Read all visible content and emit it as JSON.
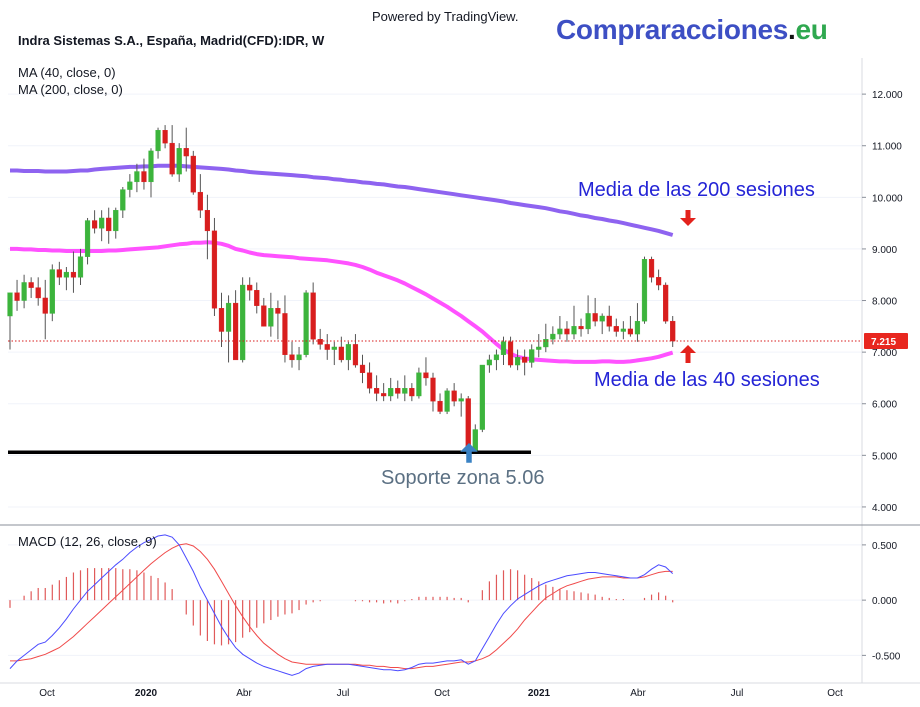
{
  "header": {
    "powered_by": "Powered by TradingView.",
    "brand_part1": "Compraracciones",
    "brand_part2": ".",
    "brand_part3": "eu",
    "symbol_title": "Indra Sistemas S.A., España, Madrid(CFD):IDR, W"
  },
  "indicators": {
    "ma40_label": "MA (40, close, 0)",
    "ma200_label": "MA (200, close, 0)",
    "macd_label": "MACD (12, 26, close, 9)"
  },
  "annotations": {
    "ma200_text": "Media de las 200 sesiones",
    "ma40_text": "Media de las 40 sesiones",
    "support_text": "Soporte zona 5.06"
  },
  "colors": {
    "up": "#3cb43c",
    "down": "#d81e1e",
    "ma200": "#8e63f0",
    "ma40": "#ff52ff",
    "support": "#000000",
    "price_badge": "#e8271f",
    "macd_line": "#4b4bff",
    "signal_line": "#f04a4a",
    "histogram": "#e05a5a",
    "arrow_red": "#e3221c",
    "arrow_blue": "#3a82c4"
  },
  "chart_data": [
    {
      "type": "candlestick",
      "title": "Indra Sistemas S.A., España, Madrid(CFD):IDR, W",
      "y_ticks": [
        "12.000",
        "11.000",
        "10.000",
        "9.000",
        "8.000",
        "7.000",
        "6.000",
        "5.000",
        "4.000"
      ],
      "ylim": [
        3.65,
        12.7
      ],
      "x_ticks": [
        "Oct",
        "2020",
        "Abr",
        "Jul",
        "Oct",
        "2021",
        "Abr",
        "Jul",
        "Oct"
      ],
      "last_price": 7.215,
      "last_price_label": "7.215",
      "support_level": 5.06,
      "candles": [
        [
          7.7,
          8.15,
          7.05,
          8.15
        ],
        [
          8.15,
          8.4,
          7.8,
          8.0
        ],
        [
          8.0,
          8.5,
          7.85,
          8.35
        ],
        [
          8.35,
          8.45,
          8.05,
          8.25
        ],
        [
          8.25,
          8.45,
          7.9,
          8.05
        ],
        [
          8.05,
          8.4,
          7.25,
          7.75
        ],
        [
          7.75,
          8.7,
          7.6,
          8.6
        ],
        [
          8.6,
          8.75,
          8.3,
          8.45
        ],
        [
          8.45,
          8.65,
          8.2,
          8.55
        ],
        [
          8.55,
          8.95,
          8.15,
          8.45
        ],
        [
          8.45,
          9.0,
          8.3,
          8.85
        ],
        [
          8.85,
          9.6,
          8.7,
          9.55
        ],
        [
          9.55,
          9.75,
          9.3,
          9.4
        ],
        [
          9.4,
          9.75,
          9.15,
          9.6
        ],
        [
          9.6,
          9.8,
          9.1,
          9.35
        ],
        [
          9.35,
          9.8,
          9.2,
          9.75
        ],
        [
          9.75,
          10.2,
          9.6,
          10.15
        ],
        [
          10.15,
          10.45,
          10.0,
          10.3
        ],
        [
          10.3,
          10.65,
          10.1,
          10.5
        ],
        [
          10.5,
          10.75,
          10.15,
          10.3
        ],
        [
          10.3,
          10.95,
          10.0,
          10.9
        ],
        [
          10.9,
          11.35,
          10.75,
          11.3
        ],
        [
          11.3,
          11.4,
          10.95,
          11.05
        ],
        [
          11.05,
          11.4,
          10.4,
          10.45
        ],
        [
          10.45,
          11.05,
          10.3,
          10.95
        ],
        [
          10.95,
          11.35,
          10.5,
          10.8
        ],
        [
          10.8,
          10.9,
          10.05,
          10.1
        ],
        [
          10.1,
          10.45,
          9.6,
          9.75
        ],
        [
          9.75,
          10.05,
          8.8,
          9.35
        ],
        [
          9.35,
          9.6,
          7.7,
          7.85
        ],
        [
          7.85,
          8.15,
          7.1,
          7.4
        ],
        [
          7.4,
          8.1,
          6.8,
          7.95
        ],
        [
          7.95,
          8.2,
          6.9,
          6.85
        ],
        [
          6.85,
          8.45,
          6.8,
          8.3
        ],
        [
          8.3,
          8.45,
          8.0,
          8.2
        ],
        [
          8.2,
          8.35,
          7.75,
          7.9
        ],
        [
          7.9,
          8.05,
          7.5,
          7.5
        ],
        [
          7.5,
          8.15,
          7.3,
          7.85
        ],
        [
          7.85,
          8.0,
          7.25,
          7.75
        ],
        [
          7.75,
          8.1,
          6.8,
          6.95
        ],
        [
          6.95,
          7.2,
          6.7,
          6.85
        ],
        [
          6.85,
          7.1,
          6.65,
          6.95
        ],
        [
          6.95,
          8.2,
          6.9,
          8.15
        ],
        [
          8.15,
          8.35,
          7.15,
          7.25
        ],
        [
          7.25,
          7.45,
          7.05,
          7.15
        ],
        [
          7.15,
          7.35,
          6.85,
          7.05
        ],
        [
          7.05,
          7.2,
          6.75,
          7.1
        ],
        [
          7.1,
          7.3,
          6.8,
          6.85
        ],
        [
          6.85,
          7.2,
          6.65,
          7.15
        ],
        [
          7.15,
          7.35,
          6.7,
          6.75
        ],
        [
          6.75,
          6.95,
          6.4,
          6.6
        ],
        [
          6.6,
          6.8,
          6.2,
          6.3
        ],
        [
          6.3,
          6.55,
          6.05,
          6.2
        ],
        [
          6.2,
          6.4,
          6.05,
          6.15
        ],
        [
          6.15,
          6.5,
          6.05,
          6.3
        ],
        [
          6.3,
          6.45,
          6.1,
          6.2
        ],
        [
          6.2,
          6.55,
          6.05,
          6.3
        ],
        [
          6.3,
          6.4,
          6.05,
          6.15
        ],
        [
          6.15,
          6.7,
          6.1,
          6.6
        ],
        [
          6.6,
          6.9,
          6.35,
          6.5
        ],
        [
          6.5,
          6.6,
          5.85,
          6.05
        ],
        [
          6.05,
          6.2,
          5.8,
          5.85
        ],
        [
          5.85,
          6.3,
          5.8,
          6.25
        ],
        [
          6.25,
          6.4,
          5.95,
          6.05
        ],
        [
          6.05,
          6.2,
          5.75,
          6.1
        ],
        [
          6.1,
          6.15,
          5.05,
          5.1
        ],
        [
          5.1,
          5.6,
          5.05,
          5.5
        ],
        [
          5.5,
          6.75,
          5.45,
          6.75
        ],
        [
          6.75,
          6.95,
          6.6,
          6.85
        ],
        [
          6.85,
          7.05,
          6.65,
          6.95
        ],
        [
          6.95,
          7.3,
          6.75,
          7.2
        ],
        [
          7.2,
          7.3,
          6.7,
          6.75
        ],
        [
          6.75,
          7.05,
          6.65,
          6.9
        ],
        [
          6.9,
          7.05,
          6.55,
          6.8
        ],
        [
          6.8,
          7.15,
          6.7,
          7.05
        ],
        [
          7.05,
          7.35,
          6.9,
          7.1
        ],
        [
          7.1,
          7.55,
          7.0,
          7.25
        ],
        [
          7.25,
          7.5,
          7.15,
          7.35
        ],
        [
          7.35,
          7.7,
          7.25,
          7.45
        ],
        [
          7.45,
          7.6,
          7.2,
          7.35
        ],
        [
          7.35,
          7.9,
          7.25,
          7.5
        ],
        [
          7.5,
          7.65,
          7.3,
          7.45
        ],
        [
          7.45,
          8.1,
          7.35,
          7.75
        ],
        [
          7.75,
          8.05,
          7.5,
          7.6
        ],
        [
          7.6,
          7.75,
          7.35,
          7.7
        ],
        [
          7.7,
          7.9,
          7.4,
          7.5
        ],
        [
          7.5,
          7.65,
          7.3,
          7.4
        ],
        [
          7.4,
          7.6,
          7.25,
          7.45
        ],
        [
          7.45,
          7.7,
          7.3,
          7.35
        ],
        [
          7.35,
          7.95,
          7.2,
          7.6
        ],
        [
          7.6,
          8.85,
          7.55,
          8.8
        ],
        [
          8.8,
          8.85,
          8.35,
          8.45
        ],
        [
          8.45,
          8.6,
          8.2,
          8.3
        ],
        [
          8.3,
          8.35,
          7.55,
          7.6
        ],
        [
          7.6,
          7.7,
          7.1,
          7.215
        ]
      ],
      "ma200_values": [
        10.52,
        10.52,
        10.51,
        10.51,
        10.51,
        10.5,
        10.5,
        10.5,
        10.5,
        10.51,
        10.52,
        10.52,
        10.54,
        10.55,
        10.56,
        10.57,
        10.58,
        10.59,
        10.59,
        10.6,
        10.6,
        10.61,
        10.61,
        10.61,
        10.61,
        10.6,
        10.59,
        10.58,
        10.57,
        10.56,
        10.55,
        10.54,
        10.52,
        10.51,
        10.49,
        10.48,
        10.47,
        10.46,
        10.45,
        10.44,
        10.43,
        10.42,
        10.41,
        10.39,
        10.38,
        10.37,
        10.35,
        10.34,
        10.32,
        10.31,
        10.29,
        10.28,
        10.26,
        10.25,
        10.23,
        10.21,
        10.2,
        10.18,
        10.16,
        10.14,
        10.12,
        10.1,
        10.08,
        10.06,
        10.04,
        10.02,
        10.0,
        9.98,
        9.96,
        9.94,
        9.92,
        9.89,
        9.87,
        9.85,
        9.83,
        9.81,
        9.79,
        9.76,
        9.73,
        9.71,
        9.68,
        9.65,
        9.63,
        9.6,
        9.58,
        9.55,
        9.53,
        9.5,
        9.47,
        9.44,
        9.41,
        9.38,
        9.35,
        9.31,
        9.27
      ],
      "ma40_values": [
        9.0,
        9.0,
        8.99,
        8.99,
        8.98,
        8.98,
        8.97,
        8.97,
        8.96,
        8.96,
        8.96,
        8.96,
        8.96,
        8.96,
        8.97,
        8.97,
        8.98,
        8.99,
        9.0,
        9.01,
        9.02,
        9.03,
        9.05,
        9.07,
        9.09,
        9.1,
        9.12,
        9.12,
        9.13,
        9.12,
        9.1,
        9.06,
        9.0,
        8.97,
        8.93,
        8.9,
        8.88,
        8.87,
        8.86,
        8.85,
        8.84,
        8.82,
        8.81,
        8.8,
        8.79,
        8.78,
        8.76,
        8.74,
        8.72,
        8.69,
        8.65,
        8.6,
        8.54,
        8.49,
        8.44,
        8.39,
        8.33,
        8.26,
        8.19,
        8.12,
        8.04,
        7.96,
        7.88,
        7.79,
        7.7,
        7.6,
        7.5,
        7.4,
        7.28,
        7.16,
        7.05,
        6.97,
        6.91,
        6.88,
        6.86,
        6.85,
        6.84,
        6.83,
        6.82,
        6.82,
        6.81,
        6.81,
        6.81,
        6.81,
        6.82,
        6.82,
        6.81,
        6.81,
        6.82,
        6.84,
        6.86,
        6.88,
        6.91,
        6.95,
        6.99
      ]
    },
    {
      "type": "line",
      "title": "MACD (12, 26, close, 9)",
      "y_ticks": [
        "0.500",
        "0.000",
        "-0.500"
      ],
      "ylim": [
        -0.75,
        0.68
      ],
      "series": [
        {
          "name": "MACD",
          "values": [
            -0.62,
            -0.55,
            -0.5,
            -0.45,
            -0.4,
            -0.38,
            -0.32,
            -0.25,
            -0.17,
            -0.08,
            0.0,
            0.08,
            0.14,
            0.2,
            0.26,
            0.32,
            0.37,
            0.43,
            0.48,
            0.52,
            0.55,
            0.58,
            0.59,
            0.57,
            0.5,
            0.38,
            0.26,
            0.12,
            0.0,
            -0.12,
            -0.24,
            -0.34,
            -0.43,
            -0.49,
            -0.53,
            -0.57,
            -0.6,
            -0.62,
            -0.64,
            -0.66,
            -0.68,
            -0.66,
            -0.62,
            -0.6,
            -0.59,
            -0.58,
            -0.58,
            -0.58,
            -0.58,
            -0.59,
            -0.6,
            -0.61,
            -0.62,
            -0.63,
            -0.63,
            -0.64,
            -0.63,
            -0.61,
            -0.58,
            -0.57,
            -0.57,
            -0.56,
            -0.55,
            -0.55,
            -0.54,
            -0.58,
            -0.55,
            -0.44,
            -0.33,
            -0.22,
            -0.12,
            -0.05,
            0.01,
            0.05,
            0.09,
            0.13,
            0.16,
            0.18,
            0.2,
            0.22,
            0.23,
            0.24,
            0.25,
            0.25,
            0.24,
            0.23,
            0.22,
            0.21,
            0.2,
            0.2,
            0.23,
            0.28,
            0.32,
            0.3,
            0.24
          ]
        },
        {
          "name": "Signal",
          "values": [
            -0.55,
            -0.55,
            -0.54,
            -0.53,
            -0.51,
            -0.49,
            -0.46,
            -0.43,
            -0.38,
            -0.33,
            -0.27,
            -0.21,
            -0.15,
            -0.09,
            -0.03,
            0.03,
            0.09,
            0.15,
            0.21,
            0.27,
            0.33,
            0.38,
            0.43,
            0.47,
            0.5,
            0.51,
            0.49,
            0.44,
            0.37,
            0.28,
            0.17,
            0.06,
            -0.05,
            -0.15,
            -0.24,
            -0.32,
            -0.39,
            -0.44,
            -0.49,
            -0.53,
            -0.56,
            -0.57,
            -0.58,
            -0.58,
            -0.58,
            -0.58,
            -0.58,
            -0.58,
            -0.58,
            -0.58,
            -0.59,
            -0.59,
            -0.6,
            -0.6,
            -0.61,
            -0.61,
            -0.62,
            -0.62,
            -0.61,
            -0.6,
            -0.6,
            -0.59,
            -0.58,
            -0.57,
            -0.56,
            -0.56,
            -0.55,
            -0.53,
            -0.5,
            -0.45,
            -0.39,
            -0.33,
            -0.26,
            -0.18,
            -0.11,
            -0.04,
            0.02,
            0.06,
            0.1,
            0.13,
            0.15,
            0.17,
            0.19,
            0.2,
            0.21,
            0.21,
            0.21,
            0.2,
            0.2,
            0.2,
            0.21,
            0.23,
            0.25,
            0.26,
            0.26
          ]
        }
      ]
    }
  ]
}
